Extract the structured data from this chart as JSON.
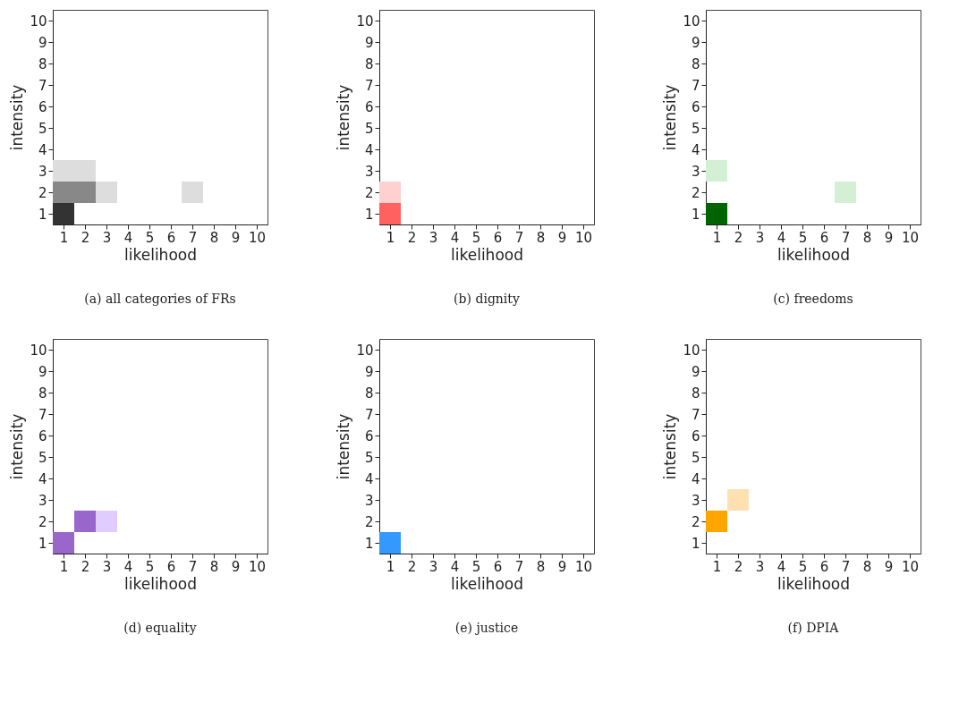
{
  "chart_data": [
    {
      "type": "scatter",
      "title": "(a)  all categories of FRs",
      "xlabel": "likelihood",
      "ylabel": "intensity",
      "xlim": [
        0.5,
        10.5
      ],
      "ylim": [
        0.5,
        10.5
      ],
      "xticks": [
        1,
        2,
        3,
        4,
        5,
        6,
        7,
        8,
        9,
        10
      ],
      "yticks": [
        1,
        2,
        3,
        4,
        5,
        6,
        7,
        8,
        9,
        10
      ],
      "marker": "square",
      "grid": false,
      "x": [
        1,
        1,
        2,
        3,
        7,
        1,
        2
      ],
      "values": [
        1,
        2,
        2,
        2,
        2,
        3,
        3
      ],
      "colors": [
        "#333333",
        "#888888",
        "#888888",
        "#dddddd",
        "#dddddd",
        "#dddddd",
        "#dddddd"
      ]
    },
    {
      "type": "scatter",
      "title": "(b)  dignity",
      "xlabel": "likelihood",
      "ylabel": "intensity",
      "xlim": [
        0.5,
        10.5
      ],
      "ylim": [
        0.5,
        10.5
      ],
      "xticks": [
        1,
        2,
        3,
        4,
        5,
        6,
        7,
        8,
        9,
        10
      ],
      "yticks": [
        1,
        2,
        3,
        4,
        5,
        6,
        7,
        8,
        9,
        10
      ],
      "marker": "square",
      "grid": false,
      "x": [
        1,
        1
      ],
      "values": [
        1,
        2
      ],
      "colors": [
        "#ff6060",
        "#ffd0d0"
      ]
    },
    {
      "type": "scatter",
      "title": "(c)  freedoms",
      "xlabel": "likelihood",
      "ylabel": "intensity",
      "xlim": [
        0.5,
        10.5
      ],
      "ylim": [
        0.5,
        10.5
      ],
      "xticks": [
        1,
        2,
        3,
        4,
        5,
        6,
        7,
        8,
        9,
        10
      ],
      "yticks": [
        1,
        2,
        3,
        4,
        5,
        6,
        7,
        8,
        9,
        10
      ],
      "marker": "square",
      "grid": false,
      "x": [
        1,
        7,
        1
      ],
      "values": [
        1,
        2,
        3
      ],
      "colors": [
        "#006400",
        "#d4f0d4",
        "#d4f0d4"
      ]
    },
    {
      "type": "scatter",
      "title": "(d)  equality",
      "xlabel": "likelihood",
      "ylabel": "intensity",
      "xlim": [
        0.5,
        10.5
      ],
      "ylim": [
        0.5,
        10.5
      ],
      "xticks": [
        1,
        2,
        3,
        4,
        5,
        6,
        7,
        8,
        9,
        10
      ],
      "yticks": [
        1,
        2,
        3,
        4,
        5,
        6,
        7,
        8,
        9,
        10
      ],
      "marker": "square",
      "grid": false,
      "x": [
        1,
        2,
        3
      ],
      "values": [
        1,
        2,
        2
      ],
      "colors": [
        "#9966cc",
        "#9966cc",
        "#e0ccff"
      ]
    },
    {
      "type": "scatter",
      "title": "(e)  justice",
      "xlabel": "likelihood",
      "ylabel": "intensity",
      "xlim": [
        0.5,
        10.5
      ],
      "ylim": [
        0.5,
        10.5
      ],
      "xticks": [
        1,
        2,
        3,
        4,
        5,
        6,
        7,
        8,
        9,
        10
      ],
      "yticks": [
        1,
        2,
        3,
        4,
        5,
        6,
        7,
        8,
        9,
        10
      ],
      "marker": "square",
      "grid": false,
      "x": [
        1
      ],
      "values": [
        1
      ],
      "colors": [
        "#3399ff"
      ]
    },
    {
      "type": "scatter",
      "title": "(f)  DPIA",
      "xlabel": "likelihood",
      "ylabel": "intensity",
      "xlim": [
        0.5,
        10.5
      ],
      "ylim": [
        0.5,
        10.5
      ],
      "xticks": [
        1,
        2,
        3,
        4,
        5,
        6,
        7,
        8,
        9,
        10
      ],
      "yticks": [
        1,
        2,
        3,
        4,
        5,
        6,
        7,
        8,
        9,
        10
      ],
      "marker": "square",
      "grid": false,
      "x": [
        1,
        2
      ],
      "values": [
        2,
        3
      ],
      "colors": [
        "#ffa500",
        "#ffe0b0"
      ]
    }
  ]
}
